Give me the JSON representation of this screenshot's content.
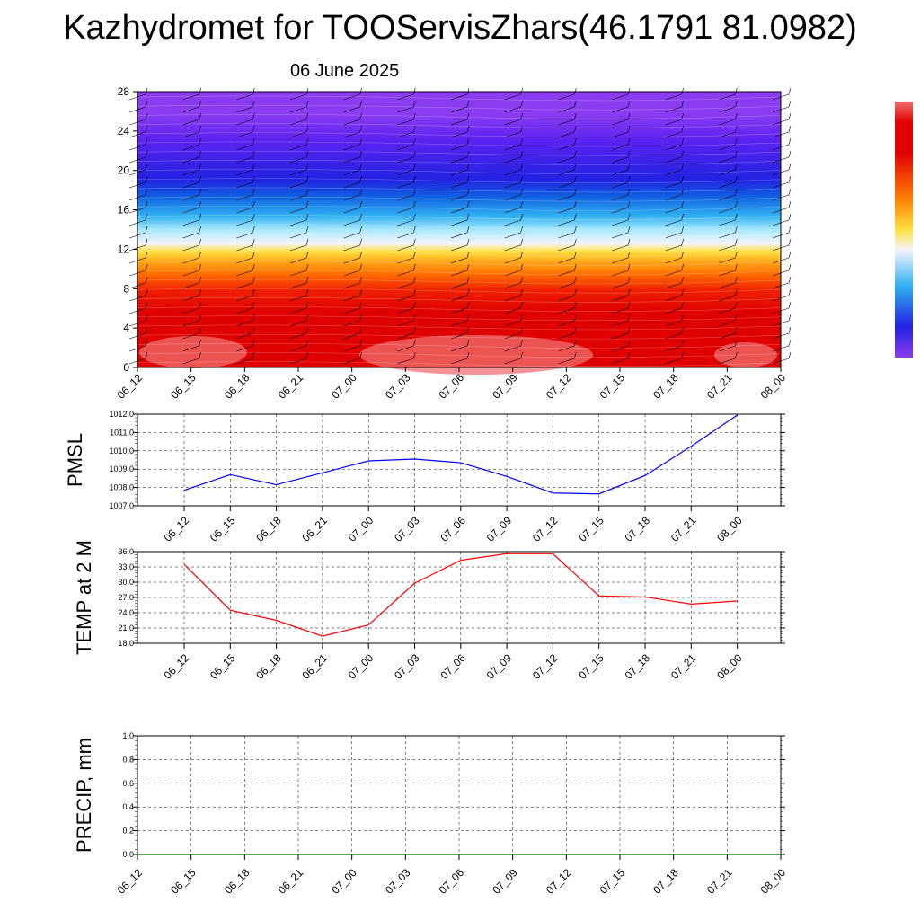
{
  "title": "Kazhydromet for TOOServisZhars(46.1791 81.0982)",
  "subtitle": "06 June 2025",
  "chart_data": [
    {
      "type": "heatmap",
      "panel": "wind-temperature-cross-section",
      "x_ticks": [
        "06_12",
        "06_15",
        "06_18",
        "06_21",
        "07_00",
        "07_03",
        "07_06",
        "07_09",
        "07_12",
        "07_15",
        "07_18",
        "07_21",
        "08_00"
      ],
      "y_ticks": [
        "0",
        "4",
        "8",
        "12",
        "16",
        "20",
        "24",
        "28"
      ],
      "ylim": [
        0,
        28
      ],
      "colorbar": "violet-blue-white-yellow-red",
      "wind_barbs": true,
      "colors": {
        "violet": "#8a3cf0",
        "blue": "#2222e0",
        "white": "#f4f4ff",
        "yellow": "#ffe040",
        "red": "#e00000",
        "pink": "#f07070"
      }
    },
    {
      "type": "line",
      "ylabel": "PMSL",
      "x": [
        "06_12",
        "06_15",
        "06_18",
        "06_21",
        "07_00",
        "07_03",
        "07_06",
        "07_09",
        "07_12",
        "07_15",
        "07_18",
        "07_21",
        "08_00"
      ],
      "values": [
        1007.85,
        1008.7,
        1008.15,
        1008.8,
        1009.45,
        1009.55,
        1009.35,
        1008.6,
        1007.7,
        1007.65,
        1008.65,
        1010.25,
        1011.95
      ],
      "y_ticks": [
        "1007.0",
        "1008.0",
        "1009.0",
        "1010.0",
        "1011.0",
        "1012.0"
      ],
      "ylim": [
        1007,
        1012
      ],
      "color": "#0000ff",
      "grid": true
    },
    {
      "type": "line",
      "ylabel": "TEMP at 2 M",
      "x": [
        "06_12",
        "06_15",
        "06_18",
        "06_21",
        "07_00",
        "07_03",
        "07_06",
        "07_09",
        "07_12",
        "07_15",
        "07_18",
        "07_21",
        "08_00"
      ],
      "values": [
        33.5,
        24.5,
        22.5,
        19.4,
        21.6,
        29.8,
        34.3,
        35.6,
        35.6,
        27.3,
        27.1,
        25.7,
        26.3
      ],
      "y_ticks": [
        "18.0",
        "21.0",
        "24.0",
        "27.0",
        "30.0",
        "33.0",
        "36.0"
      ],
      "ylim": [
        18,
        36
      ],
      "color": "#ff0000",
      "grid": true
    },
    {
      "type": "line",
      "ylabel": "PRECIP, mm",
      "x": [
        "06_12",
        "06_15",
        "06_18",
        "06_21",
        "07_00",
        "07_03",
        "07_06",
        "07_09",
        "07_12",
        "07_15",
        "07_18",
        "07_21",
        "08_00"
      ],
      "values": [
        0,
        0,
        0,
        0,
        0,
        0,
        0,
        0,
        0,
        0,
        0,
        0,
        0
      ],
      "y_ticks": [
        "0.0",
        "0.2",
        "0.4",
        "0.6",
        "0.8",
        "1.0"
      ],
      "ylim": [
        0,
        1
      ],
      "color": "#006400",
      "grid": true
    }
  ]
}
